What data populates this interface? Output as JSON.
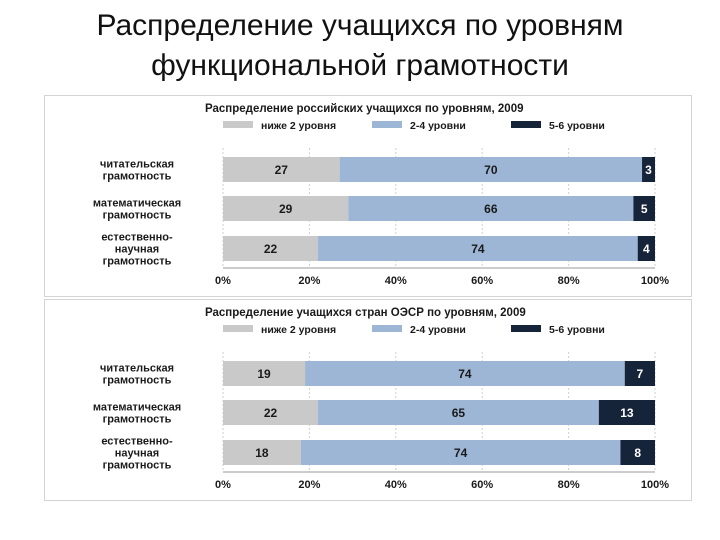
{
  "slide": {
    "title_lines": [
      "Распределение учащихся по уровням",
      "функциональной грамотности"
    ]
  },
  "chart_data": [
    {
      "type": "bar",
      "orientation": "horizontal",
      "stacked": true,
      "title": "Распределение российских учащихся по уровням, 2009",
      "categories": [
        [
          "читательская",
          "грамотность"
        ],
        [
          "математическая",
          "грамотность"
        ],
        [
          "естественно-",
          "научная",
          "грамотность"
        ]
      ],
      "series": [
        {
          "name": "ниже 2 уровня",
          "color": "#c9c9c9",
          "label_color": "#1a1a1a",
          "values": [
            27,
            29,
            22
          ]
        },
        {
          "name": "2-4 уровни",
          "color": "#9db6d6",
          "label_color": "#1a1a1a",
          "values": [
            70,
            66,
            74
          ]
        },
        {
          "name": "5-6 уровни",
          "color": "#16243a",
          "label_color": "#ffffff",
          "values": [
            3,
            5,
            4
          ]
        }
      ],
      "xlim": [
        0,
        100
      ],
      "xticks": [
        "0%",
        "20%",
        "40%",
        "60%",
        "80%",
        "100%"
      ],
      "grid": true,
      "legend": "top"
    },
    {
      "type": "bar",
      "orientation": "horizontal",
      "stacked": true,
      "title": "Распределение учащихся  стран ОЭСР по уровням, 2009",
      "categories": [
        [
          "читательская",
          "грамотность"
        ],
        [
          "математическая",
          "грамотность"
        ],
        [
          "естественно-",
          "научная",
          "грамотность"
        ]
      ],
      "series": [
        {
          "name": "ниже 2 уровня",
          "color": "#c9c9c9",
          "label_color": "#1a1a1a",
          "values": [
            19,
            22,
            18
          ]
        },
        {
          "name": "2-4 уровни",
          "color": "#9db6d6",
          "label_color": "#1a1a1a",
          "values": [
            74,
            65,
            74
          ]
        },
        {
          "name": "5-6 уровни",
          "color": "#16243a",
          "label_color": "#ffffff",
          "values": [
            7,
            13,
            8
          ]
        }
      ],
      "xlim": [
        0,
        100
      ],
      "xticks": [
        "0%",
        "20%",
        "40%",
        "60%",
        "80%",
        "100%"
      ],
      "grid": true,
      "legend": "top"
    }
  ]
}
